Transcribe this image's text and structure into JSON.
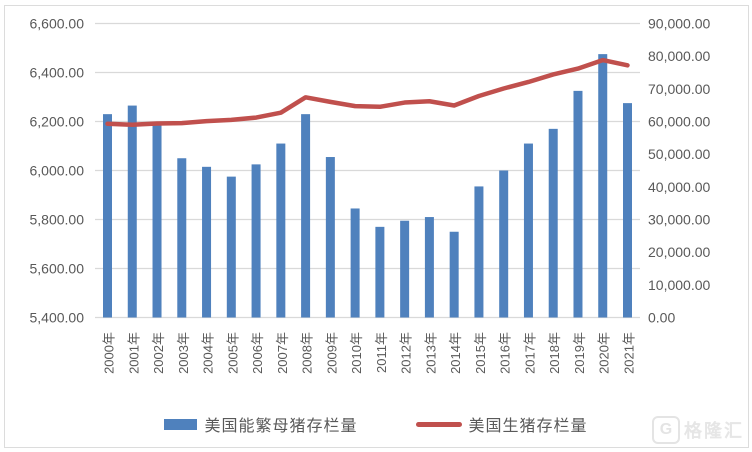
{
  "chart_data": {
    "type": "combo-bar-line",
    "title": "",
    "categories": [
      "2000年",
      "2001年",
      "2002年",
      "2003年",
      "2004年",
      "2005年",
      "2006年",
      "2007年",
      "2008年",
      "2009年",
      "2010年",
      "2011年",
      "2012年",
      "2013年",
      "2014年",
      "2015年",
      "2016年",
      "2017年",
      "2018年",
      "2019年",
      "2020年",
      "2021年"
    ],
    "series": [
      {
        "name": "美国能繁母猪存栏量",
        "type": "bar",
        "axis": "left",
        "color": "#4F81BD",
        "values": [
          6230,
          6265,
          6185,
          6050,
          6015,
          5975,
          6025,
          6110,
          6230,
          6055,
          5845,
          5770,
          5795,
          5810,
          5750,
          5935,
          6000,
          6110,
          6170,
          6325,
          6475,
          6275
        ]
      },
      {
        "name": "美国生猪存栏量",
        "type": "line",
        "axis": "right",
        "color": "#C0504D",
        "values": [
          59300,
          59000,
          59400,
          59500,
          60100,
          60500,
          61200,
          62700,
          67400,
          66000,
          64700,
          64500,
          65800,
          66200,
          64900,
          67800,
          70100,
          72100,
          74400,
          76200,
          78800,
          77200
        ]
      }
    ],
    "left_axis": {
      "min": 5400,
      "max": 6600,
      "step": 200,
      "tick_values": [
        5400,
        5600,
        5800,
        6000,
        6200,
        6400,
        6600
      ],
      "tick_labels": [
        "5,400.00",
        "5,600.00",
        "5,800.00",
        "6,000.00",
        "6,200.00",
        "6,400.00",
        "6,600.00"
      ]
    },
    "right_axis": {
      "min": 0,
      "max": 90000,
      "step": 10000,
      "tick_values": [
        0,
        10000,
        20000,
        30000,
        40000,
        50000,
        60000,
        70000,
        80000,
        90000
      ],
      "tick_labels": [
        "0.00",
        "10,000.00",
        "20,000.00",
        "30,000.00",
        "40,000.00",
        "50,000.00",
        "60,000.00",
        "70,000.00",
        "80,000.00",
        "90,000.00"
      ]
    },
    "grid": true,
    "legend_position": "bottom"
  },
  "colors": {
    "bar": "#4F81BD",
    "line": "#C0504D",
    "grid": "#D9D9D9",
    "axis_text": "#595959"
  },
  "watermark": {
    "logo": "G",
    "text": "格隆汇"
  }
}
